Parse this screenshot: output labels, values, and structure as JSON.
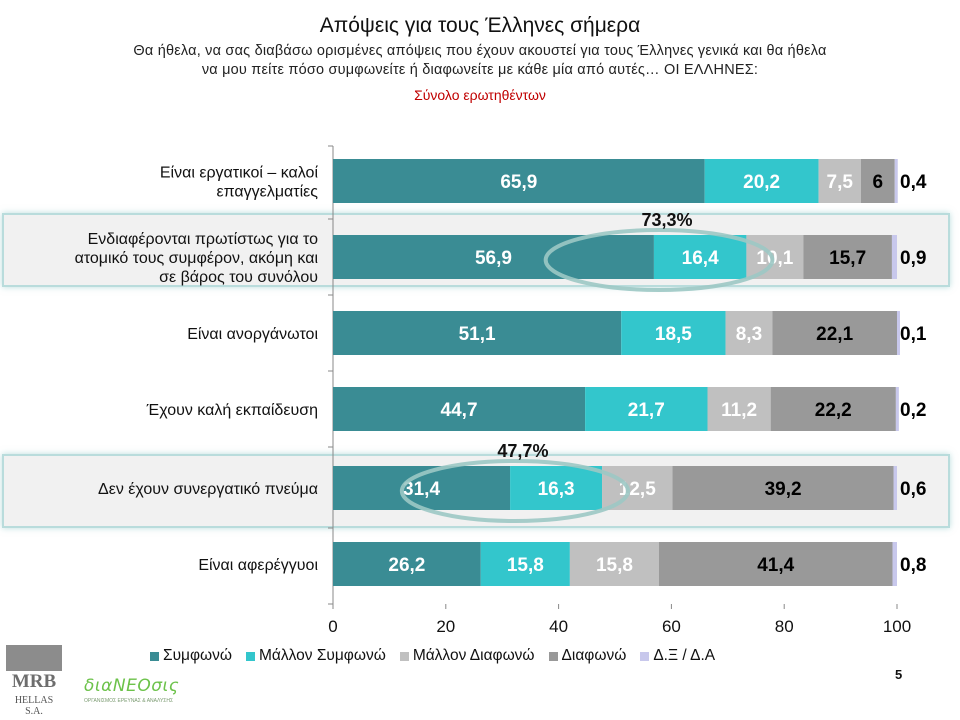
{
  "title": "Απόψεις για τους Έλληνες σήμερα",
  "subtitle_line1": "Θα ήθελα, να σας διαβάσω ορισμένες απόψεις που έχουν ακουστεί για τους Έλληνες γενικά και θα ήθελα",
  "subtitle_line2": "να μου πείτε πόσο συμφωνείτε ή διαφωνείτε με κάθε μία από αυτές… ΟΙ ΕΛΛΗΝΕΣ:",
  "base_note": "Σύνολο ερωτηθέντων",
  "page_number": "5",
  "logos": {
    "mrb": "MRB",
    "mrb_sub": "HELLAS S.A.",
    "dianeosis": "διαΝΕΟσις",
    "dianeosis_tag": "ΟΡΓΑΝΙΣΜΟΣ ΕΡΕΥΝΑΣ & ΑΝΑΛΥΣΗΣ"
  },
  "colors": {
    "agree": "#3a8c94",
    "rather_agree": "#33c6cc",
    "rather_disagree": "#c0c0c0",
    "disagree": "#999999",
    "dk_na": "#c8c8ec"
  },
  "chart_data": {
    "type": "bar",
    "orientation": "horizontal",
    "stacked": true,
    "categories": [
      [
        "Είναι εργατικοί – καλοί",
        "επαγγελματίες"
      ],
      [
        "Ενδιαφέρονται πρωτίστως για το",
        "ατομικό τους συμφέρον, ακόμη και",
        "σε βάρος του συνόλου"
      ],
      [
        "Είναι ανοργάνωτοι"
      ],
      [
        "Έχουν καλή εκπαίδευση"
      ],
      [
        "Δεν έχουν συνεργατικό πνεύμα"
      ],
      [
        "Είναι αφερέγγυοι"
      ]
    ],
    "series": [
      {
        "name": "Συμφωνώ",
        "color": "#3a8c94",
        "label_color": "#ffffff",
        "values": [
          65.9,
          56.9,
          51.1,
          44.7,
          31.4,
          26.2
        ],
        "labels": [
          "65,9",
          "56,9",
          "51,1",
          "44,7",
          "31,4",
          "26,2"
        ]
      },
      {
        "name": "Μάλλον Συμφωνώ",
        "color": "#33c6cc",
        "label_color": "#ffffff",
        "values": [
          20.2,
          16.4,
          18.5,
          21.7,
          16.3,
          15.8
        ],
        "labels": [
          "20,2",
          "16,4",
          "18,5",
          "21,7",
          "16,3",
          "15,8"
        ]
      },
      {
        "name": "Μάλλον Διαφωνώ",
        "color": "#c0c0c0",
        "label_color": "#ffffff",
        "values": [
          7.5,
          10.1,
          8.3,
          11.2,
          12.5,
          15.8
        ],
        "labels": [
          "7,5",
          "10,1",
          "8,3",
          "11,2",
          "12,5",
          "15,8"
        ]
      },
      {
        "name": "Διαφωνώ",
        "color": "#999999",
        "label_color": "#000000",
        "values": [
          6,
          15.7,
          22.1,
          22.2,
          39.2,
          41.4
        ],
        "labels": [
          "6",
          "15,7",
          "22,1",
          "22,2",
          "39,2",
          "41,4"
        ]
      },
      {
        "name": "Δ.Ξ / Δ.Α",
        "color": "#c8c8ec",
        "label_color": "#000000",
        "values": [
          0.4,
          0.9,
          0.1,
          0.2,
          0.6,
          0.8
        ],
        "labels": [
          "0,4",
          "0,9",
          "0,1",
          "0,2",
          "0,6",
          "0,8"
        ]
      }
    ],
    "xlim": [
      0,
      100
    ],
    "xticks": [
      0,
      20,
      40,
      60,
      80,
      100
    ],
    "highlighted_rows": [
      1,
      4
    ],
    "annotations": [
      {
        "row": 1,
        "text": "73,3%"
      },
      {
        "row": 4,
        "text": "47,7%"
      }
    ],
    "legend_position": "bottom"
  }
}
